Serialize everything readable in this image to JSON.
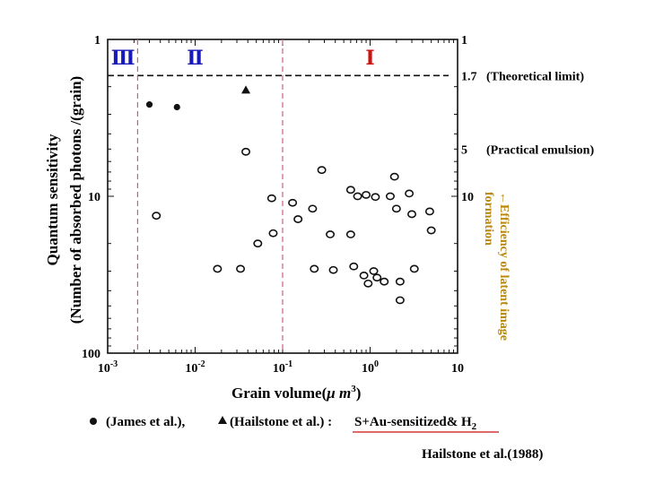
{
  "chart_data": {
    "type": "scatter",
    "xlabel_main": "Grain volume(",
    "xlabel_unit": "μ m",
    "xlabel_exp": "3",
    "xlabel_close": ")",
    "ylabel_line1": "Quantum sensitivity",
    "ylabel_line2": "(Number of absorbed photons /(grain)",
    "right_axis_label_line1": "←Efficiency of latent image",
    "right_axis_label_line2": "formation",
    "x_scale": "log",
    "y_scale": "log",
    "y_inverted": true,
    "xlim": [
      0.001,
      10
    ],
    "ylim": [
      1,
      100
    ],
    "x_ticks": [
      {
        "value": 0.001,
        "base": "10",
        "exp": "-3"
      },
      {
        "value": 0.01,
        "base": "10",
        "exp": "-2"
      },
      {
        "value": 0.1,
        "base": "10",
        "exp": "-1"
      },
      {
        "value": 1,
        "base": "10",
        "exp": "0"
      },
      {
        "value": 10,
        "base": "10",
        "exp": ""
      }
    ],
    "y_ticks_left": [
      {
        "value": 1,
        "label": "1"
      },
      {
        "value": 10,
        "label": "10"
      },
      {
        "value": 100,
        "label": "100"
      }
    ],
    "y_ticks_right": [
      {
        "value": 1,
        "label": "1",
        "note": ""
      },
      {
        "value": 1.7,
        "label": "1.7",
        "note": "(Theoretical limit)"
      },
      {
        "value": 5,
        "label": "5",
        "note": "(Practical emulsion)"
      },
      {
        "value": 10,
        "label": "10",
        "note": ""
      }
    ],
    "theoretical_limit_y": 1.7,
    "region_boundaries_x": [
      0.0022,
      0.1
    ],
    "regions": [
      {
        "label": "Ⅲ",
        "x": 0.0015,
        "color": "#1a1ab8"
      },
      {
        "label": "Ⅱ",
        "x": 0.01,
        "color": "#1a1ab8"
      },
      {
        "label": "Ⅰ",
        "x": 1.0,
        "color": "#cc1111"
      }
    ],
    "series": [
      {
        "name": "(James et al.),",
        "marker": "filled-circle",
        "points": [
          [
            0.003,
            2.6
          ],
          [
            0.0062,
            2.7
          ]
        ]
      },
      {
        "name": "(Hailstone et al.) :",
        "marker": "filled-triangle",
        "points": [
          [
            0.038,
            2.1
          ]
        ]
      },
      {
        "name": "S+Au-sensitized& H",
        "name_sub": "2",
        "marker": "open-circle",
        "points": [
          [
            0.0036,
            13.3
          ],
          [
            0.018,
            29
          ],
          [
            0.033,
            29
          ],
          [
            0.038,
            5.2
          ],
          [
            0.052,
            20
          ],
          [
            0.075,
            10.3
          ],
          [
            0.078,
            17.2
          ],
          [
            0.13,
            11
          ],
          [
            0.15,
            14
          ],
          [
            0.22,
            12
          ],
          [
            0.23,
            29
          ],
          [
            0.28,
            6.8
          ],
          [
            0.35,
            17.5
          ],
          [
            0.38,
            29.5
          ],
          [
            0.6,
            9.1
          ],
          [
            0.6,
            17.5
          ],
          [
            0.65,
            28
          ],
          [
            0.72,
            10
          ],
          [
            0.85,
            32
          ],
          [
            0.9,
            9.8
          ],
          [
            0.95,
            36
          ],
          [
            1.1,
            30
          ],
          [
            1.15,
            10.1
          ],
          [
            1.2,
            33
          ],
          [
            1.45,
            35
          ],
          [
            1.7,
            10
          ],
          [
            1.9,
            7.5
          ],
          [
            2.0,
            12
          ],
          [
            2.2,
            35
          ],
          [
            2.2,
            46
          ],
          [
            2.8,
            9.6
          ],
          [
            3.0,
            13
          ],
          [
            3.2,
            29
          ],
          [
            4.8,
            12.5
          ],
          [
            5.0,
            16.5
          ]
        ]
      }
    ]
  },
  "citation": "Hailstone et al.(1988)",
  "colors": {
    "region_divider": "#c8607a",
    "right_label": "#b8860b",
    "legend_underline": "#cc1111"
  }
}
